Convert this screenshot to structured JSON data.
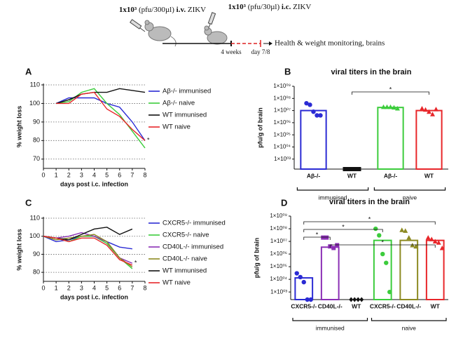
{
  "schematic": {
    "injection_1": {
      "dose": "1x10³",
      "volume": "(pfu/300µl)",
      "route": "i.v.",
      "virus": "ZIKV"
    },
    "injection_2": {
      "dose": "1x10³",
      "volume": "(pfu/30µl)",
      "route": "i.c.",
      "virus": "ZIKV"
    },
    "interval": "4 weeks",
    "endpoint": "day 7/8",
    "readout": "Health & weight monitoring, brains"
  },
  "chart_data": [
    {
      "type": "line",
      "panel": "A",
      "xlabel": "days post i.c. infection",
      "ylabel": "% weight loss",
      "xlim": [
        0,
        8
      ],
      "xticks": [
        0,
        1,
        2,
        3,
        4,
        5,
        6,
        7,
        8
      ],
      "ylim": [
        65,
        110
      ],
      "yticks": [
        70,
        80,
        90,
        100,
        110
      ],
      "grid": true,
      "x": [
        1,
        2,
        3,
        4,
        5,
        6,
        7,
        8
      ],
      "series": [
        {
          "name": "Aβ-/- immunised",
          "color": "#2b2bd4",
          "values": [
            100,
            103,
            103,
            103,
            100,
            98,
            90,
            80
          ]
        },
        {
          "name": "Aβ-/- naive",
          "color": "#3ccc3c",
          "values": [
            100,
            101,
            106,
            108,
            100,
            94,
            85,
            76
          ]
        },
        {
          "name": "WT immunised",
          "color": "#111111",
          "values": [
            100,
            102,
            105,
            106,
            106,
            108,
            107,
            106
          ]
        },
        {
          "name": "WT naive",
          "color": "#e8262a",
          "values": [
            100,
            100,
            105,
            106,
            97,
            93,
            86,
            80
          ]
        }
      ],
      "annotations": [
        {
          "text": "*",
          "x": 8,
          "y": 80
        }
      ]
    },
    {
      "type": "bar",
      "panel": "B",
      "title": "viral titers in the brain",
      "ylabel": "pfu/g of brain",
      "log": true,
      "ylim": [
        150,
        1000000000
      ],
      "yticks": [
        {
          "value": 1000000000,
          "label": "1×10⁰⁹"
        },
        {
          "value": 100000000,
          "label": "1×10⁰⁸"
        },
        {
          "value": 10000000,
          "label": "1×10⁰⁷"
        },
        {
          "value": 1000000,
          "label": "1×10⁰⁶"
        },
        {
          "value": 100000,
          "label": "1×10⁰⁵"
        },
        {
          "value": 10000,
          "label": "1×10⁰⁴"
        },
        {
          "value": 1000,
          "label": "1×10⁰³"
        }
      ],
      "categories": [
        "Aβ-/-",
        "WT",
        "Aβ-/-",
        "WT"
      ],
      "colors": [
        "#2b2bd4",
        "#111111",
        "#3ccc3c",
        "#e8262a"
      ],
      "markers": [
        "circle",
        "square",
        "triangle",
        "triangle"
      ],
      "values": [
        10000000,
        150,
        18000000,
        10000000
      ],
      "points": [
        [
          40000000,
          30000000,
          8000000,
          4000000,
          4000000
        ],
        [
          150,
          150,
          150,
          150,
          150
        ],
        [
          20000000,
          20000000,
          20000000,
          18000000,
          15000000
        ],
        [
          15000000,
          12000000,
          8000000,
          5000000,
          13000000
        ]
      ],
      "groups": [
        {
          "label": "immunised",
          "from": 0,
          "to": 1
        },
        {
          "label": "naive",
          "from": 2,
          "to": 3
        }
      ],
      "comparisons": [
        {
          "from": 1,
          "to": 3,
          "label": "*"
        }
      ]
    },
    {
      "type": "line",
      "panel": "C",
      "xlabel": "days post i.c. infection",
      "ylabel": "% weight loss",
      "xlim": [
        0,
        8
      ],
      "xticks": [
        0,
        1,
        2,
        3,
        4,
        5,
        6,
        7,
        8
      ],
      "ylim": [
        75,
        110
      ],
      "yticks": [
        80,
        90,
        100,
        110
      ],
      "grid": true,
      "x": [
        0,
        1,
        2,
        3,
        4,
        5,
        6,
        7
      ],
      "series": [
        {
          "name": "CXCR5-/- immunised",
          "color": "#2b2bd4",
          "values": [
            100,
            97,
            98,
            100,
            100,
            97,
            94,
            93
          ]
        },
        {
          "name": "CXCR5-/- naive",
          "color": "#3ccc3c",
          "values": [
            100,
            99,
            97,
            100,
            100,
            96,
            88,
            82
          ]
        },
        {
          "name": "CD40L-/- immunised",
          "color": "#8b2fb5",
          "values": [
            100,
            99,
            100,
            102,
            100,
            97,
            88,
            85
          ]
        },
        {
          "name": "CD40L-/- naive",
          "color": "#8d8a22",
          "values": [
            100,
            98,
            99,
            100,
            101,
            97,
            88,
            83
          ]
        },
        {
          "name": "WT immunised",
          "color": "#111111",
          "values": [
            100,
            99,
            98,
            101,
            104,
            105,
            101,
            104
          ]
        },
        {
          "name": "WT naive",
          "color": "#e8262a",
          "values": [
            100,
            99,
            97,
            99,
            99,
            95,
            87,
            84
          ]
        }
      ],
      "annotations": [
        {
          "text": "*",
          "x": 7,
          "y": 85
        }
      ]
    },
    {
      "type": "bar",
      "panel": "D",
      "title": "viral titers in the brain",
      "ylabel": "pfu/g of brain",
      "log": true,
      "ylim": [
        250,
        1000000000
      ],
      "yticks": [
        {
          "value": 1000000000,
          "label": "1×10⁰⁹"
        },
        {
          "value": 100000000,
          "label": "1×10⁰⁸"
        },
        {
          "value": 10000000,
          "label": "1×10⁰⁷"
        },
        {
          "value": 1000000,
          "label": "1×10⁰⁶"
        },
        {
          "value": 100000,
          "label": "1×10⁰⁵"
        },
        {
          "value": 10000,
          "label": "1×10⁰⁴"
        },
        {
          "value": 1000,
          "label": "1×10⁰³"
        }
      ],
      "categories": [
        "CXCR5-/-",
        "CD40L-/-",
        "WT",
        "CXCR5-/-",
        "CD40L-/-",
        "WT"
      ],
      "colors": [
        "#2b2bd4",
        "#8b2fb5",
        "#111111",
        "#3ccc3c",
        "#8d8a22",
        "#e8262a"
      ],
      "markers": [
        "circle",
        "square",
        "diamond",
        "circle",
        "triangle",
        "triangle"
      ],
      "values": [
        13000,
        3500000,
        250,
        12000000,
        12000000,
        12000000
      ],
      "points": [
        [
          30000,
          15000,
          6000,
          250,
          250
        ],
        [
          20000000,
          20000000,
          4000000,
          3000000,
          5000000
        ],
        [
          250,
          250,
          250,
          250
        ],
        [
          100000000,
          30000000,
          1000000,
          200000,
          1000
        ],
        [
          80000000,
          70000000,
          20000000,
          5000000,
          4000000
        ],
        [
          20000000,
          15000000,
          10000000,
          8000000,
          3000000
        ]
      ],
      "groups": [
        {
          "label": "immunised",
          "from": 0,
          "to": 2
        },
        {
          "label": "naive",
          "from": 3,
          "to": 5
        }
      ],
      "comparisons": [
        {
          "from": 0,
          "to": 5,
          "label": "*"
        },
        {
          "from": 0,
          "to": 3,
          "label": "*"
        },
        {
          "from": 0,
          "to": 1,
          "label": "*"
        },
        {
          "from": 1,
          "to": 5,
          "label": "*"
        }
      ]
    }
  ]
}
